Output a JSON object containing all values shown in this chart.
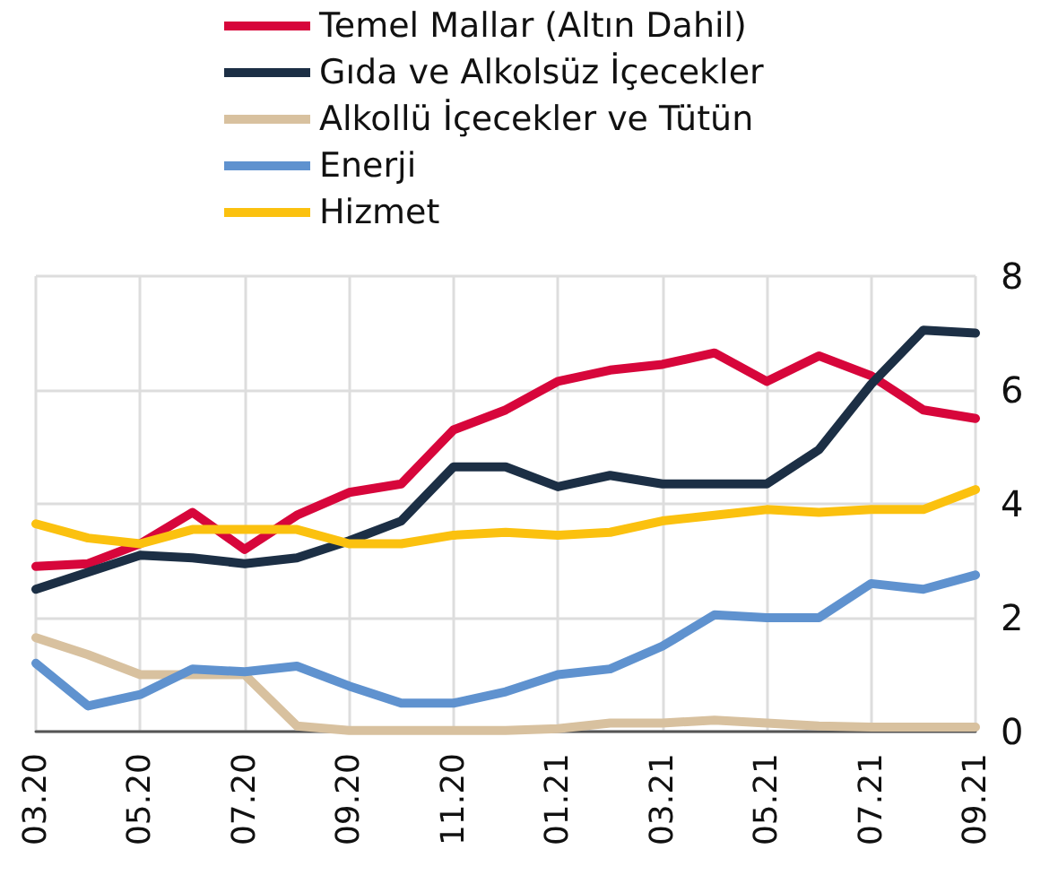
{
  "chart_data": {
    "type": "line",
    "categories": [
      "03.20",
      null,
      "05.20",
      null,
      "07.20",
      null,
      "09.20",
      null,
      "11.20",
      null,
      "01.21",
      null,
      "03.21",
      null,
      "05.21",
      null,
      "07.21",
      null,
      "09.21"
    ],
    "series": [
      {
        "name": "Temel Mallar (Altın Dahil)",
        "color": "#d7063b",
        "values": [
          2.9,
          2.95,
          3.3,
          3.85,
          3.2,
          3.8,
          4.2,
          4.35,
          5.3,
          5.65,
          6.15,
          6.35,
          6.45,
          6.65,
          6.15,
          6.6,
          6.25,
          5.65,
          5.5
        ]
      },
      {
        "name": "Gıda ve Alkolsüz İçecekler",
        "color": "#1c2f45",
        "values": [
          2.5,
          2.8,
          3.1,
          3.05,
          2.95,
          3.05,
          3.35,
          3.7,
          4.65,
          4.65,
          4.3,
          4.5,
          4.35,
          4.35,
          4.35,
          4.95,
          6.1,
          7.05,
          7.0
        ]
      },
      {
        "name": "Alkollü İçecekler ve Tütün",
        "color": "#d8c19f",
        "values": [
          1.65,
          1.35,
          1.0,
          1.0,
          1.0,
          0.1,
          0.02,
          0.02,
          0.02,
          0.02,
          0.05,
          0.15,
          0.15,
          0.2,
          0.15,
          0.1,
          0.08,
          0.08,
          0.08
        ]
      },
      {
        "name": "Enerji",
        "color": "#5f92cf",
        "values": [
          1.2,
          0.45,
          0.65,
          1.1,
          1.05,
          1.15,
          0.8,
          0.5,
          0.5,
          0.7,
          1.0,
          1.1,
          1.5,
          2.05,
          2.0,
          2.0,
          2.6,
          2.5,
          2.75
        ]
      },
      {
        "name": "Hizmet",
        "color": "#fbc10f",
        "values": [
          3.65,
          3.4,
          3.3,
          3.55,
          3.55,
          3.55,
          3.3,
          3.3,
          3.45,
          3.5,
          3.45,
          3.5,
          3.7,
          3.8,
          3.9,
          3.85,
          3.9,
          3.9,
          4.25
        ]
      }
    ],
    "ylim": [
      0,
      8
    ],
    "yticks": [
      0,
      2,
      4,
      6,
      8
    ],
    "grid": true,
    "legend": "top",
    "marker": "none",
    "line_style": "solid"
  }
}
